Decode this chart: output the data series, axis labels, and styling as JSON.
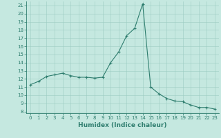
{
  "title": "",
  "xlabel": "Humidex (Indice chaleur)",
  "ylabel": "",
  "x_values": [
    0,
    1,
    2,
    3,
    4,
    5,
    6,
    7,
    8,
    9,
    10,
    11,
    12,
    13,
    14,
    15,
    16,
    17,
    18,
    19,
    20,
    21,
    22,
    23
  ],
  "y_values": [
    11.3,
    11.7,
    12.3,
    12.5,
    12.7,
    12.4,
    12.2,
    12.2,
    12.1,
    12.2,
    14.0,
    15.3,
    17.3,
    18.2,
    21.2,
    11.0,
    10.2,
    9.6,
    9.3,
    9.2,
    8.8,
    8.5,
    8.5,
    8.3
  ],
  "line_color": "#2e7d6e",
  "marker": "+",
  "marker_size": 3,
  "background_color": "#c5e8e0",
  "grid_color": "#9cccc2",
  "ylim_min": 7.8,
  "ylim_max": 21.5,
  "xlim_min": -0.5,
  "xlim_max": 23.5,
  "yticks": [
    8,
    9,
    10,
    11,
    12,
    13,
    14,
    15,
    16,
    17,
    18,
    19,
    20,
    21
  ],
  "xticks": [
    0,
    1,
    2,
    3,
    4,
    5,
    6,
    7,
    8,
    9,
    10,
    11,
    12,
    13,
    14,
    15,
    16,
    17,
    18,
    19,
    20,
    21,
    22,
    23
  ],
  "tick_fontsize": 5.0,
  "label_fontsize": 6.5,
  "line_width": 0.8,
  "marker_edge_width": 0.8
}
